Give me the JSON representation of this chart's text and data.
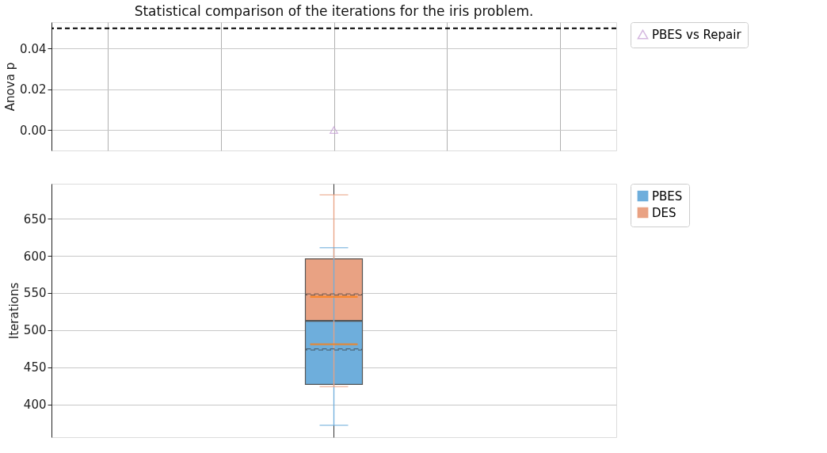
{
  "chart_data": [
    {
      "type": "scatter",
      "title": "Statistical comparison of the iterations for the iris problem.",
      "ylabel": "Anova p",
      "categories": [
        null,
        null,
        null,
        null,
        null
      ],
      "series": [
        {
          "name": "PBES vs Repair",
          "color": "#c39bd3",
          "values": [
            null,
            null,
            0.0,
            null,
            null
          ]
        }
      ],
      "ylim": [
        -0.01,
        0.053
      ],
      "yticks": [
        {
          "value": 0,
          "label": "0.00"
        },
        {
          "value": 0.02,
          "label": "0.02"
        },
        {
          "value": 0.04,
          "label": "0.04"
        }
      ],
      "ref_lines": [
        {
          "axis": "y",
          "value": 0.05,
          "color": "#000000",
          "line_style": "dashed"
        }
      ],
      "grid": true,
      "legend": "top right",
      "marker": "triangle",
      "tick_labels": "y"
    },
    {
      "type": "box",
      "ylabel": "Iterations",
      "categories": [
        null
      ],
      "series": [
        {
          "name": "PBES",
          "color": "#6eaedc",
          "boxes": [
            {
              "low": 372,
              "q1": 427,
              "median": 481,
              "q3": 512,
              "high": 611,
              "mean": 474
            }
          ]
        },
        {
          "name": "DES",
          "color": "#e9a283",
          "boxes": [
            {
              "low": 424,
              "q1": 513,
              "median": 545,
              "q3": 596,
              "high": 682,
              "mean": 548
            }
          ]
        }
      ],
      "ylim": [
        356,
        697
      ],
      "yticks": [
        400,
        450,
        500,
        550,
        600,
        650
      ],
      "grid": true,
      "legend": "top right",
      "tick_labels": "y"
    }
  ]
}
